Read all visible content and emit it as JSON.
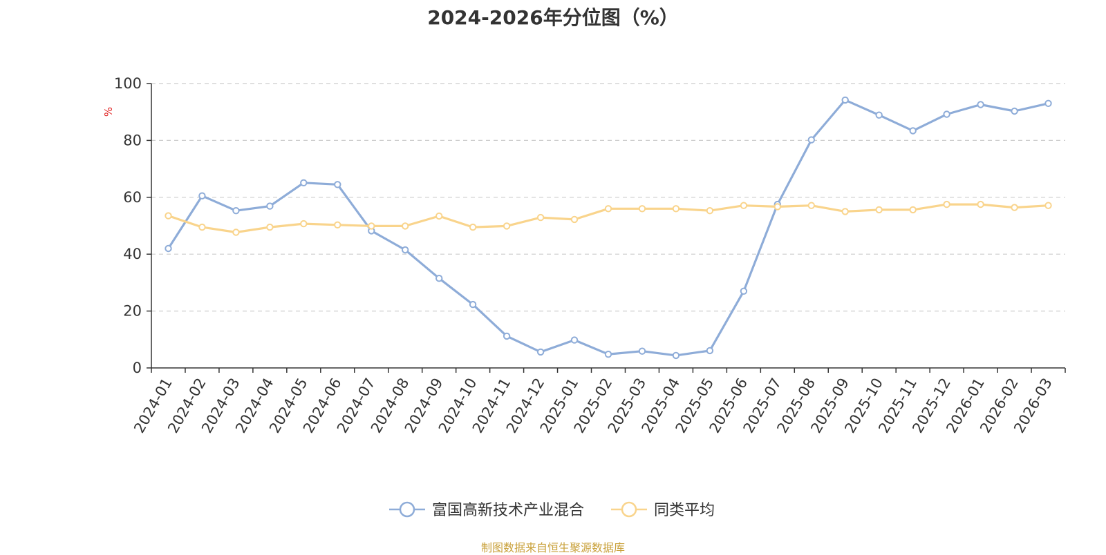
{
  "page": {
    "title": "2024-2026年分位图（%）",
    "source_note": "制图数据来自恒生聚源数据库"
  },
  "chart_data": {
    "type": "line",
    "title": "2024-2026年分位图（%）",
    "ylabel": "%",
    "xlabel": "",
    "ylim": [
      0,
      100
    ],
    "yticks": [
      0,
      20,
      40,
      60,
      80,
      100
    ],
    "grid": "horizontal-dashed",
    "legend_position": "bottom",
    "categories": [
      "2024-01",
      "2024-02",
      "2024-03",
      "2024-04",
      "2024-05",
      "2024-06",
      "2024-07",
      "2024-08",
      "2024-09",
      "2024-10",
      "2024-11",
      "2024-12",
      "2025-01",
      "2025-02",
      "2025-03",
      "2025-04",
      "2025-05",
      "2025-06",
      "2025-07",
      "2025-08",
      "2025-09",
      "2025-10",
      "2025-11",
      "2025-12",
      "2026-01",
      "2026-02",
      "2026-03"
    ],
    "series": [
      {
        "name": "富国高新技术产业混合",
        "color": "#8eacd8",
        "values": [
          42,
          60.5,
          55.3,
          56.9,
          65.1,
          64.5,
          48.2,
          41.5,
          31.5,
          22.3,
          11.2,
          5.6,
          9.8,
          4.8,
          5.9,
          4.4,
          6.1,
          27,
          57.5,
          80.2,
          94.2,
          88.9,
          83.4,
          89.2,
          92.6,
          90.3,
          93
        ]
      },
      {
        "name": "同类平均",
        "color": "#f9d48c",
        "values": [
          53.5,
          49.5,
          47.7,
          49.5,
          50.7,
          50.3,
          49.9,
          49.9,
          53.4,
          49.5,
          49.9,
          52.9,
          52.2,
          56,
          56,
          56,
          55.3,
          57.1,
          56.7,
          57.1,
          55,
          55.6,
          55.6,
          57.5,
          57.5,
          56.4,
          57.1
        ]
      }
    ]
  }
}
